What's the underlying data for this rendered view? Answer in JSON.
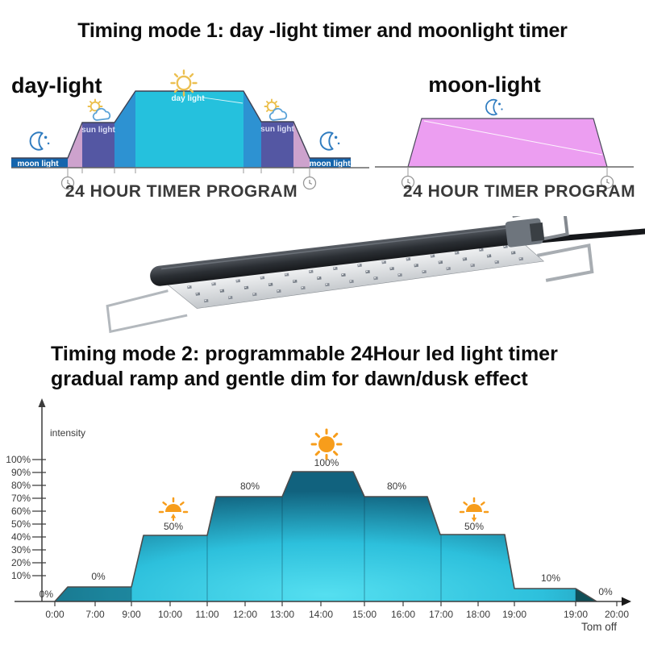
{
  "mode1": {
    "title": "Timing mode 1: day -light timer and moonlight timer",
    "day_diagram": {
      "title": "day-light",
      "moon_label_left": "moon light",
      "sun_label_left": "sun light",
      "day_label": "day light",
      "sun_label_right": "sun light",
      "moon_label_right": "moon light",
      "caption": "24 HOUR TIMER PROGRAM"
    },
    "moon_diagram": {
      "title": "moon-light",
      "caption": "24 HOUR TIMER PROGRAM"
    }
  },
  "mode2": {
    "title_line1": "Timing mode 2: programmable 24Hour led light timer",
    "title_line2": "gradual ramp and gentle dim for dawn/dusk effect"
  },
  "chart_data": {
    "type": "area",
    "title": "",
    "xlabel": "",
    "ylabel": "intensity",
    "ylim": [
      0,
      100
    ],
    "grid": false,
    "legend": "none",
    "y_ticks": [
      "100%",
      "90%",
      "80%",
      "70%",
      "60%",
      "50%",
      "40%",
      "30%",
      "20%",
      "10%"
    ],
    "x_ticks": [
      "0:00",
      "7:00",
      "9:00",
      "10:00",
      "11:00",
      "12:00",
      "13:00",
      "14:00",
      "15:00",
      "16:00",
      "17:00",
      "18:00",
      "19:00",
      "19:00",
      "20:00"
    ],
    "segments": [
      {
        "time": "0:00-7:00",
        "intensity": 0,
        "label": "0%"
      },
      {
        "time": "7:00-9:00",
        "intensity": 0,
        "label": "0%"
      },
      {
        "time": "9:00-11:00",
        "intensity": 50,
        "label": "50%",
        "icon": "sunrise-icon"
      },
      {
        "time": "11:00-13:00",
        "intensity": 80,
        "label": "80%"
      },
      {
        "time": "13:00-15:00",
        "intensity": 100,
        "label": "100%",
        "icon": "sun-icon"
      },
      {
        "time": "15:00-17:00",
        "intensity": 80,
        "label": "80%"
      },
      {
        "time": "17:00-19:00",
        "intensity": 50,
        "label": "50%",
        "icon": "sunset-icon"
      },
      {
        "time": "19:00-19:00",
        "intensity": 10,
        "label": "10%"
      },
      {
        "time": "19:00-20:00",
        "intensity": 0,
        "label": "0%"
      }
    ],
    "off_note": "Tom off"
  },
  "colors": {
    "day_light_cyan": "#25c1dd",
    "transition_blue": "#2d92d2",
    "sun_light_purple": "#5457a3",
    "dawn_dusk_pink": "#cda2cd",
    "moon_light_bar_blue": "#1465ad",
    "moonlight_trapezoid_pink": "#ec9ef1",
    "chart_teal_bright": "#4cdaee",
    "chart_teal_dark": "#136785",
    "sun_orange": "#f79d1b",
    "moon_icon_blue": "#2f7cc0"
  }
}
